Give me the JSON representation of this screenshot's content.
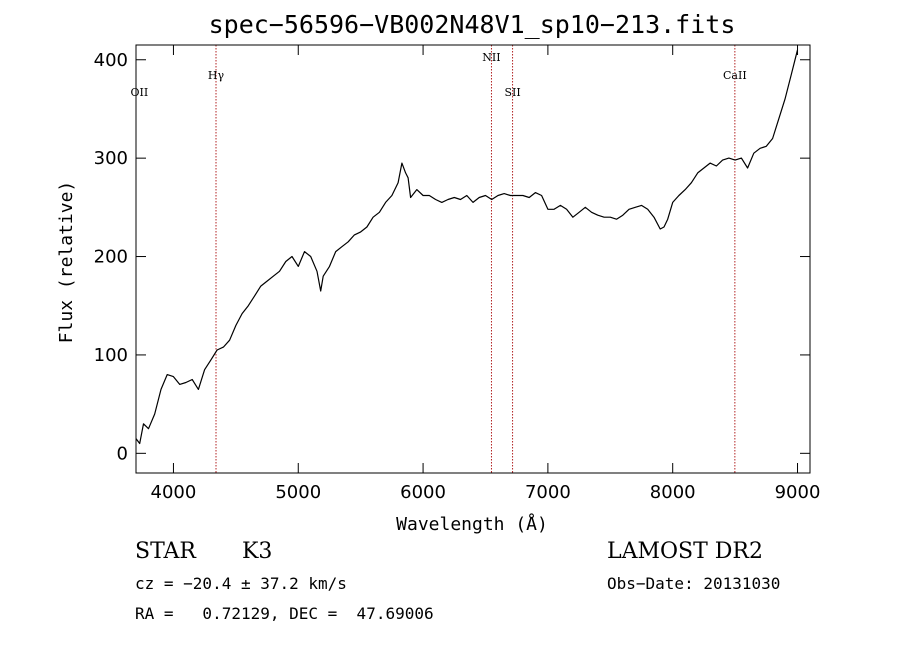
{
  "chart_data": {
    "type": "line",
    "title": "spec−56596−VB002N48V1_sp10−213.fits",
    "xlabel": "Wavelength (Å)",
    "ylabel": "Flux (relative)",
    "xlim": [
      3700,
      9100
    ],
    "ylim": [
      -20,
      415
    ],
    "x_ticks": [
      4000,
      5000,
      6000,
      7000,
      8000,
      9000
    ],
    "y_ticks": [
      0,
      100,
      200,
      300,
      400
    ],
    "grid": false,
    "colors": {
      "spectrum": "#000000",
      "lines": "#b22222"
    },
    "series": [
      {
        "x": [
          3700,
          3730,
          3760,
          3800,
          3850,
          3900,
          3950,
          4000,
          4050,
          4100,
          4150,
          4200,
          4250,
          4300,
          4350,
          4400,
          4450,
          4500,
          4550,
          4600,
          4650,
          4700,
          4750,
          4800,
          4850,
          4900,
          4950,
          5000,
          5050,
          5100,
          5150,
          5180,
          5200,
          5250,
          5300,
          5350,
          5400,
          5450,
          5500,
          5550,
          5600,
          5650,
          5700,
          5750,
          5800,
          5830,
          5860,
          5880,
          5900,
          5950,
          6000,
          6050,
          6100,
          6150,
          6200,
          6250,
          6300,
          6350,
          6400,
          6450,
          6500,
          6550,
          6600,
          6650,
          6700,
          6750,
          6800,
          6850,
          6900,
          6950,
          7000,
          7050,
          7100,
          7150,
          7200,
          7250,
          7300,
          7350,
          7400,
          7450,
          7500,
          7550,
          7600,
          7650,
          7700,
          7750,
          7800,
          7850,
          7900,
          7930,
          7960,
          8000,
          8050,
          8100,
          8150,
          8200,
          8250,
          8300,
          8350,
          8400,
          8450,
          8500,
          8550,
          8600,
          8650,
          8700,
          8750,
          8800,
          8850,
          8900,
          8950,
          8980,
          9000
        ],
        "y": [
          15,
          10,
          30,
          25,
          40,
          65,
          80,
          78,
          70,
          72,
          75,
          65,
          85,
          95,
          105,
          108,
          115,
          130,
          142,
          150,
          160,
          170,
          175,
          180,
          185,
          195,
          200,
          190,
          205,
          200,
          185,
          165,
          180,
          190,
          205,
          210,
          215,
          222,
          225,
          230,
          240,
          245,
          255,
          262,
          275,
          295,
          285,
          280,
          260,
          268,
          262,
          262,
          258,
          255,
          258,
          260,
          258,
          262,
          255,
          260,
          262,
          258,
          262,
          264,
          262,
          262,
          262,
          260,
          265,
          262,
          248,
          248,
          252,
          248,
          240,
          245,
          250,
          245,
          242,
          240,
          240,
          238,
          242,
          248,
          250,
          252,
          248,
          240,
          228,
          230,
          238,
          255,
          262,
          268,
          275,
          285,
          290,
          295,
          292,
          298,
          300,
          298,
          300,
          290,
          305,
          310,
          312,
          320,
          340,
          360,
          385,
          400,
          410
        ]
      }
    ],
    "annotations": [
      {
        "label": "OII",
        "x": 3727,
        "label_row": "lower",
        "line": false
      },
      {
        "label": "Hγ",
        "x": 4341,
        "label_row": "upper",
        "line": true
      },
      {
        "label": "NII",
        "x": 6548,
        "label_row": "top",
        "line": true
      },
      {
        "label": "SII",
        "x": 6717,
        "label_row": "lower",
        "line": true
      },
      {
        "label": "CaII",
        "x": 8498,
        "label_row": "upper",
        "line": true
      }
    ]
  },
  "info": {
    "class_label": "STAR",
    "subclass_label": "K3",
    "survey": "LAMOST DR2",
    "cz_text": "cz = −20.4 ± 37.2 km/s",
    "obs_date_text": "Obs−Date: 20131030",
    "coords_text": "RA =   0.72129, DEC =  47.69006"
  }
}
